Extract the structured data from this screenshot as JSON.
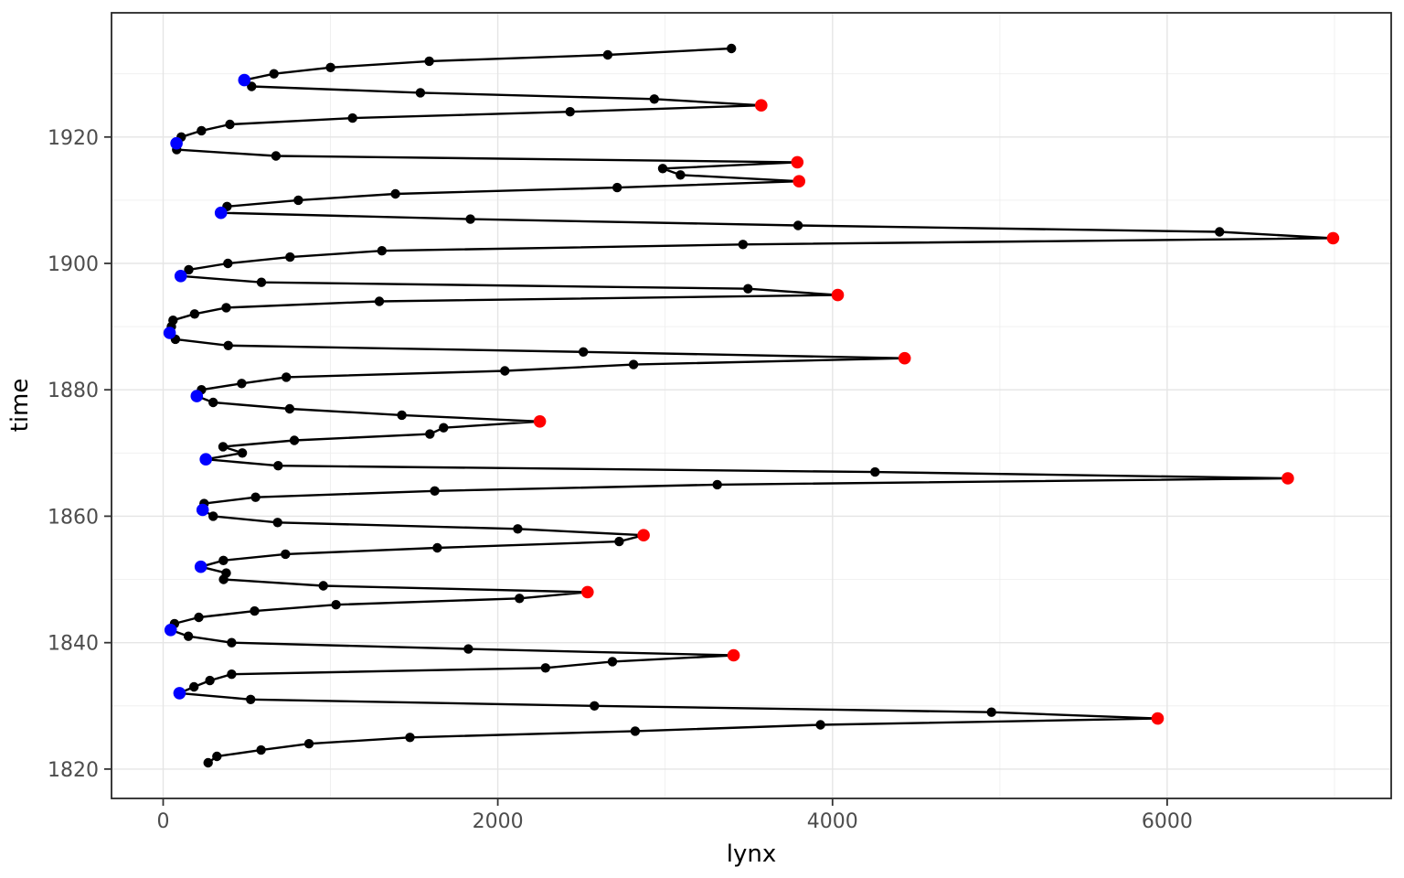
{
  "chart_data": {
    "type": "line",
    "title": "",
    "xlabel": "lynx",
    "ylabel": "time",
    "orientation": "lynx value on x-axis, year on y-axis, path connects consecutive years",
    "grid": true,
    "legend": "none",
    "xlim": [
      -308.6,
      7338.6
    ],
    "ylim": [
      1815.35,
      1939.65
    ],
    "x_ticks": [
      0,
      2000,
      4000,
      6000
    ],
    "x_minor_ticks": [
      1000,
      3000,
      5000,
      7000
    ],
    "y_ticks": [
      1820,
      1840,
      1860,
      1880,
      1900,
      1920
    ],
    "y_minor_ticks": [
      1830,
      1850,
      1870,
      1890,
      1910,
      1930
    ],
    "series": [
      {
        "name": "lynx",
        "points_year_value": [
          [
            1821,
            269
          ],
          [
            1822,
            321
          ],
          [
            1823,
            585
          ],
          [
            1824,
            871
          ],
          [
            1825,
            1475
          ],
          [
            1826,
            2821
          ],
          [
            1827,
            3928
          ],
          [
            1828,
            5943
          ],
          [
            1829,
            4950
          ],
          [
            1830,
            2577
          ],
          [
            1831,
            523
          ],
          [
            1832,
            98
          ],
          [
            1833,
            184
          ],
          [
            1834,
            279
          ],
          [
            1835,
            409
          ],
          [
            1836,
            2285
          ],
          [
            1837,
            2685
          ],
          [
            1838,
            3409
          ],
          [
            1839,
            1824
          ],
          [
            1840,
            409
          ],
          [
            1841,
            151
          ],
          [
            1842,
            45
          ],
          [
            1843,
            68
          ],
          [
            1844,
            213
          ],
          [
            1845,
            546
          ],
          [
            1846,
            1033
          ],
          [
            1847,
            2129
          ],
          [
            1848,
            2536
          ],
          [
            1849,
            957
          ],
          [
            1850,
            361
          ],
          [
            1851,
            377
          ],
          [
            1852,
            225
          ],
          [
            1853,
            360
          ],
          [
            1854,
            731
          ],
          [
            1855,
            1638
          ],
          [
            1856,
            2725
          ],
          [
            1857,
            2871
          ],
          [
            1858,
            2119
          ],
          [
            1859,
            684
          ],
          [
            1860,
            299
          ],
          [
            1861,
            236
          ],
          [
            1862,
            245
          ],
          [
            1863,
            552
          ],
          [
            1864,
            1623
          ],
          [
            1865,
            3311
          ],
          [
            1866,
            6721
          ],
          [
            1867,
            4254
          ],
          [
            1868,
            687
          ],
          [
            1869,
            255
          ],
          [
            1870,
            473
          ],
          [
            1871,
            358
          ],
          [
            1872,
            784
          ],
          [
            1873,
            1594
          ],
          [
            1874,
            1676
          ],
          [
            1875,
            2251
          ],
          [
            1876,
            1426
          ],
          [
            1877,
            756
          ],
          [
            1878,
            299
          ],
          [
            1879,
            201
          ],
          [
            1880,
            229
          ],
          [
            1881,
            469
          ],
          [
            1882,
            736
          ],
          [
            1883,
            2042
          ],
          [
            1884,
            2811
          ],
          [
            1885,
            4431
          ],
          [
            1886,
            2511
          ],
          [
            1887,
            389
          ],
          [
            1888,
            73
          ],
          [
            1889,
            39
          ],
          [
            1890,
            49
          ],
          [
            1891,
            59
          ],
          [
            1892,
            188
          ],
          [
            1893,
            377
          ],
          [
            1894,
            1292
          ],
          [
            1895,
            4031
          ],
          [
            1896,
            3495
          ],
          [
            1897,
            587
          ],
          [
            1898,
            105
          ],
          [
            1899,
            153
          ],
          [
            1900,
            387
          ],
          [
            1901,
            758
          ],
          [
            1902,
            1307
          ],
          [
            1903,
            3465
          ],
          [
            1904,
            6991
          ],
          [
            1905,
            6313
          ],
          [
            1906,
            3794
          ],
          [
            1907,
            1836
          ],
          [
            1908,
            345
          ],
          [
            1909,
            382
          ],
          [
            1910,
            808
          ],
          [
            1911,
            1388
          ],
          [
            1912,
            2713
          ],
          [
            1913,
            3800
          ],
          [
            1914,
            3091
          ],
          [
            1915,
            2985
          ],
          [
            1916,
            3790
          ],
          [
            1917,
            674
          ],
          [
            1918,
            81
          ],
          [
            1919,
            80
          ],
          [
            1920,
            108
          ],
          [
            1921,
            229
          ],
          [
            1922,
            399
          ],
          [
            1923,
            1132
          ],
          [
            1924,
            2432
          ],
          [
            1925,
            3574
          ],
          [
            1926,
            2935
          ],
          [
            1927,
            1537
          ],
          [
            1928,
            529
          ],
          [
            1929,
            485
          ],
          [
            1930,
            662
          ],
          [
            1931,
            1000
          ],
          [
            1932,
            1590
          ],
          [
            1933,
            2657
          ],
          [
            1934,
            3396
          ]
        ]
      }
    ],
    "peak_years": [
      1828,
      1838,
      1848,
      1857,
      1866,
      1875,
      1885,
      1895,
      1904,
      1913,
      1916,
      1925
    ],
    "trough_years": [
      1832,
      1842,
      1852,
      1861,
      1869,
      1879,
      1889,
      1898,
      1908,
      1919,
      1929
    ],
    "colors": {
      "line": "#000000",
      "point": "#000000",
      "peak": "#FF0000",
      "trough": "#0000FF",
      "grid_major": "#E5E5E5",
      "grid_minor": "#EDEDED",
      "panel_border": "#262626",
      "tick": "#333333",
      "tick_label": "#4D4D4D",
      "axis_title": "#000000",
      "background": "#FFFFFF"
    }
  }
}
